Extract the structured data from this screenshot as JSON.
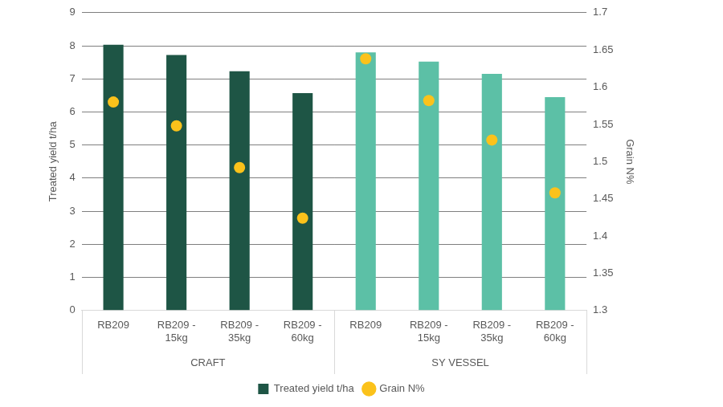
{
  "chart_data": {
    "type": "bar",
    "groups": [
      {
        "name": "CRAFT",
        "categories": [
          "RB209",
          "RB209 - 15kg",
          "RB209 - 35kg",
          "RB209 - 60kg"
        ]
      },
      {
        "name": "SY VESSEL",
        "categories": [
          "RB209",
          "RB209 - 15kg",
          "RB209 - 35kg",
          "RB209 - 60kg"
        ]
      }
    ],
    "series": [
      {
        "name": "Treated yield t/ha",
        "type": "bar",
        "color": "#1e5545",
        "colors": [
          "#1e5545",
          "#1e5545",
          "#1e5545",
          "#1e5545",
          "#5cc0a6",
          "#5cc0a6",
          "#5cc0a6",
          "#5cc0a6"
        ],
        "values": [
          8.03,
          7.72,
          7.23,
          6.57,
          7.8,
          7.52,
          7.15,
          6.45
        ]
      },
      {
        "name": "Grain N%",
        "type": "scatter",
        "axis": "y2",
        "color": "#fbc21b",
        "marker": "circle",
        "values": [
          1.58,
          1.548,
          1.492,
          1.424,
          1.638,
          1.582,
          1.529,
          1.458
        ]
      }
    ],
    "ylabel": "Treated yield t/ha",
    "y2label": "Grain N%",
    "ylim": [
      0,
      9
    ],
    "yticks": [
      0,
      1,
      2,
      3,
      4,
      5,
      6,
      7,
      8,
      9
    ],
    "y2lim": [
      1.3,
      1.7
    ],
    "y2ticks": [
      1.3,
      1.35,
      1.4,
      1.45,
      1.5,
      1.55,
      1.6,
      1.65,
      1.7
    ],
    "grid": true,
    "legend": "bottom"
  }
}
